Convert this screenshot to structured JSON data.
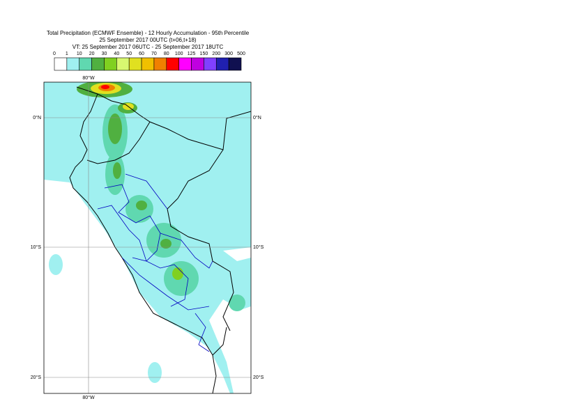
{
  "title": [
    "Total Precipitation (ECMWF Ensemble) - 12 Hourly Accumulation - 95th Percentile",
    "25 September 2017 00UTC (t+06,t+18)",
    "VT: 25 September 2017 06UTC - 25 September 2017 18UTC"
  ],
  "colorbar": {
    "levels": [
      0,
      1,
      10,
      20,
      30,
      40,
      50,
      60,
      70,
      80,
      100,
      125,
      150,
      200,
      300,
      500
    ],
    "colors": [
      "#ffffff",
      "#a0f0f0",
      "#60d8b0",
      "#50b040",
      "#80d020",
      "#d8f870",
      "#e0e020",
      "#f0c000",
      "#f08000",
      "#ff0000",
      "#ff00ff",
      "#c000e0",
      "#8040ff",
      "#2020b0",
      "#101050"
    ]
  },
  "lon_labels": {
    "top": "80°W",
    "bottom": "80°W"
  },
  "lat_labels": [
    "0°N",
    "10°S",
    "20°S"
  ]
}
